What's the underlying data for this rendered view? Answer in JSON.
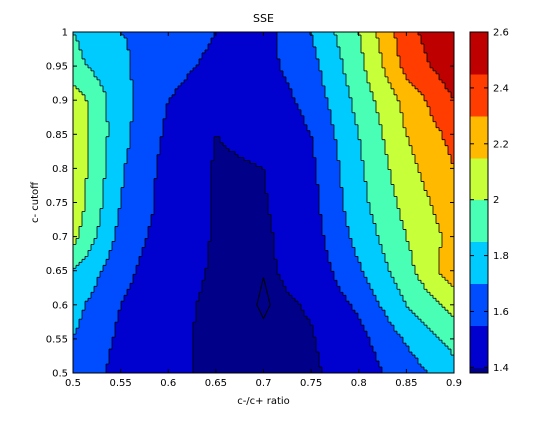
{
  "chart_data": {
    "type": "contourf",
    "title": "SSE",
    "xlabel": "c-/c+ ratio",
    "ylabel": "c- cutoff",
    "xlim": [
      0.5,
      0.9
    ],
    "ylim": [
      0.5,
      1.0
    ],
    "xticks": [
      "0.5",
      "0.55",
      "0.6",
      "0.65",
      "0.7",
      "0.75",
      "0.8",
      "0.85",
      "0.9"
    ],
    "yticks": [
      "0.5",
      "0.55",
      "0.6",
      "0.65",
      "0.7",
      "0.75",
      "0.8",
      "0.85",
      "0.9",
      "0.95",
      "1"
    ],
    "colorbar": {
      "range": [
        1.38,
        2.6
      ],
      "ticks": [
        "1.4",
        "1.6",
        "1.8",
        "2",
        "2.2",
        "2.4",
        "2.6"
      ],
      "colormap": "jet"
    },
    "levels": [
      1.4,
      1.55,
      1.7,
      1.85,
      2.0,
      2.15,
      2.3,
      2.45
    ],
    "x": [
      0.5,
      0.55,
      0.6,
      0.65,
      0.7,
      0.75,
      0.8,
      0.85,
      0.9
    ],
    "y": [
      0.5,
      0.55,
      0.6,
      0.65,
      0.7,
      0.75,
      0.8,
      0.85,
      0.9,
      0.95,
      1.0
    ],
    "z": [
      [
        1.65,
        1.5,
        1.42,
        1.38,
        1.38,
        1.38,
        1.47,
        1.62,
        1.8
      ],
      [
        1.7,
        1.52,
        1.42,
        1.38,
        1.38,
        1.39,
        1.5,
        1.72,
        1.9
      ],
      [
        1.75,
        1.55,
        1.43,
        1.38,
        1.37,
        1.41,
        1.58,
        1.85,
        2.05
      ],
      [
        1.85,
        1.6,
        1.44,
        1.39,
        1.38,
        1.45,
        1.68,
        1.95,
        2.25
      ],
      [
        2.05,
        1.65,
        1.47,
        1.39,
        1.38,
        1.48,
        1.75,
        2.0,
        2.2
      ],
      [
        2.1,
        1.7,
        1.49,
        1.39,
        1.39,
        1.5,
        1.8,
        2.05,
        2.25
      ],
      [
        2.12,
        1.72,
        1.49,
        1.39,
        1.4,
        1.52,
        1.82,
        2.1,
        2.3
      ],
      [
        2.12,
        1.75,
        1.52,
        1.4,
        1.42,
        1.55,
        1.85,
        2.15,
        2.35
      ],
      [
        2.1,
        1.75,
        1.55,
        1.42,
        1.45,
        1.6,
        1.9,
        2.2,
        2.45
      ],
      [
        1.9,
        1.72,
        1.62,
        1.5,
        1.5,
        1.65,
        1.95,
        2.35,
        2.55
      ],
      [
        1.85,
        1.7,
        1.68,
        1.55,
        1.5,
        1.7,
        2.0,
        2.4,
        2.6
      ]
    ]
  }
}
